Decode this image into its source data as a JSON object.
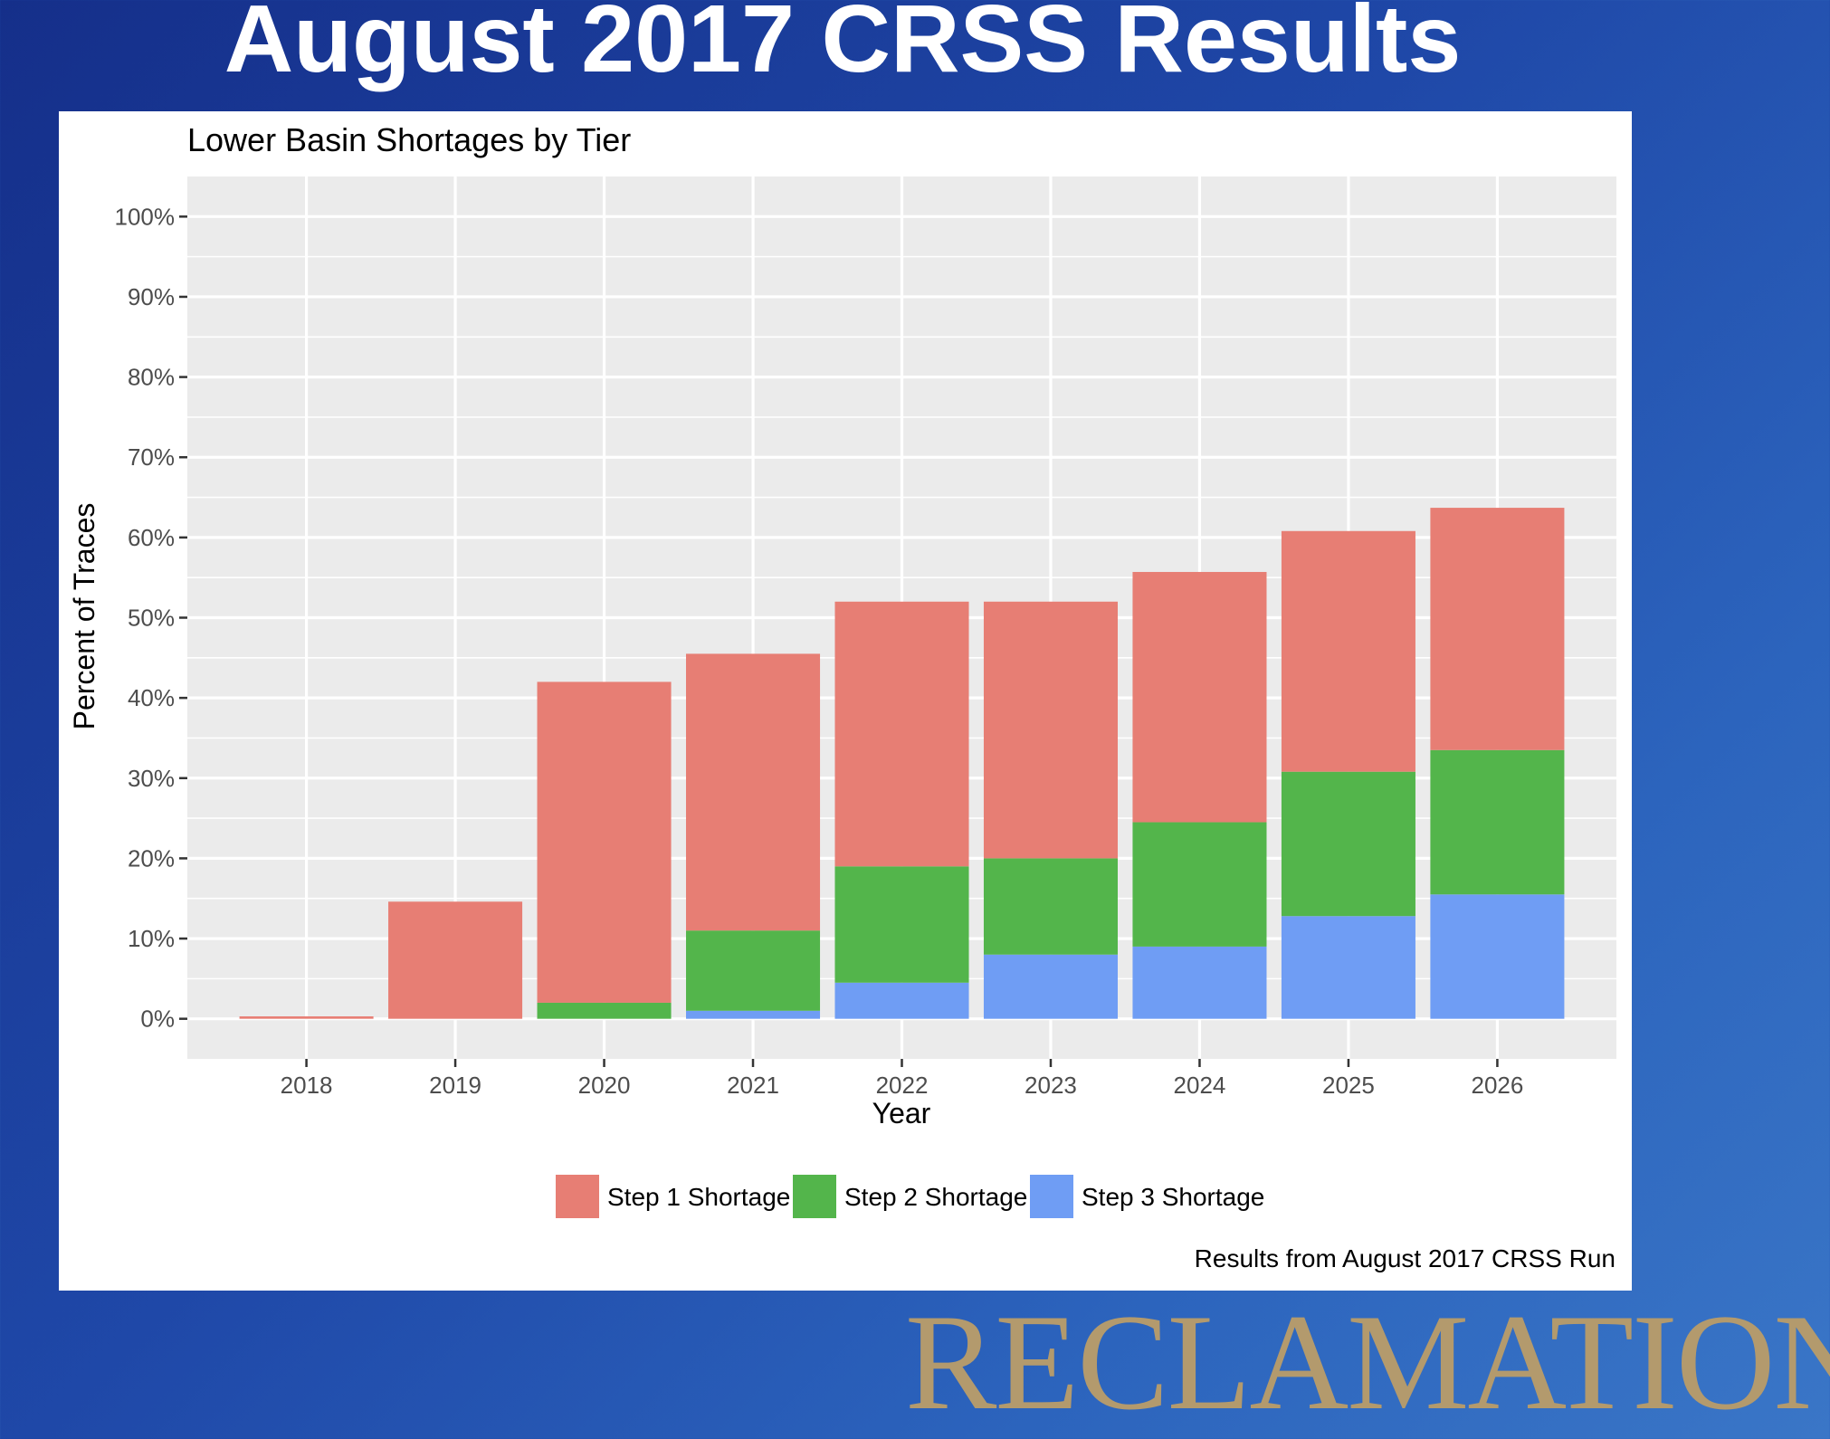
{
  "slide": {
    "title": "August 2017 CRSS Results",
    "brand": "RECLAMATION",
    "brand_color": "#b39a6d",
    "background_colors": [
      "#152f8a",
      "#3a76c7"
    ]
  },
  "chart_data": {
    "type": "bar",
    "stacked": true,
    "title": "Lower Basin Shortages by Tier",
    "xlabel": "Year",
    "ylabel": "Percent of Traces",
    "caption": "Results from August 2017 CRSS Run",
    "categories": [
      "2018",
      "2019",
      "2020",
      "2021",
      "2022",
      "2023",
      "2024",
      "2025",
      "2026"
    ],
    "y_ticks": [
      0,
      10,
      20,
      30,
      40,
      50,
      60,
      70,
      80,
      90,
      100
    ],
    "y_tick_labels": [
      "0%",
      "10%",
      "20%",
      "30%",
      "40%",
      "50%",
      "60%",
      "70%",
      "80%",
      "90%",
      "100%"
    ],
    "ylim": [
      -5,
      105
    ],
    "grid": true,
    "legend_position": "bottom",
    "series": [
      {
        "name": "Step 3 Shortage",
        "color": "#6f9df4",
        "values": [
          0,
          0,
          0,
          1,
          4.5,
          8,
          9,
          12.8,
          15.5
        ]
      },
      {
        "name": "Step 2 Shortage",
        "color": "#53b54b",
        "values": [
          0,
          0,
          2,
          10,
          14.5,
          12,
          15.5,
          18,
          18
        ]
      },
      {
        "name": "Step 1 Shortage",
        "color": "#e77e74",
        "values": [
          0.3,
          14.6,
          40,
          34.5,
          33,
          32,
          31.2,
          30,
          30.2
        ]
      }
    ],
    "legend_order": [
      "Step 1 Shortage",
      "Step 2 Shortage",
      "Step 3 Shortage"
    ]
  }
}
